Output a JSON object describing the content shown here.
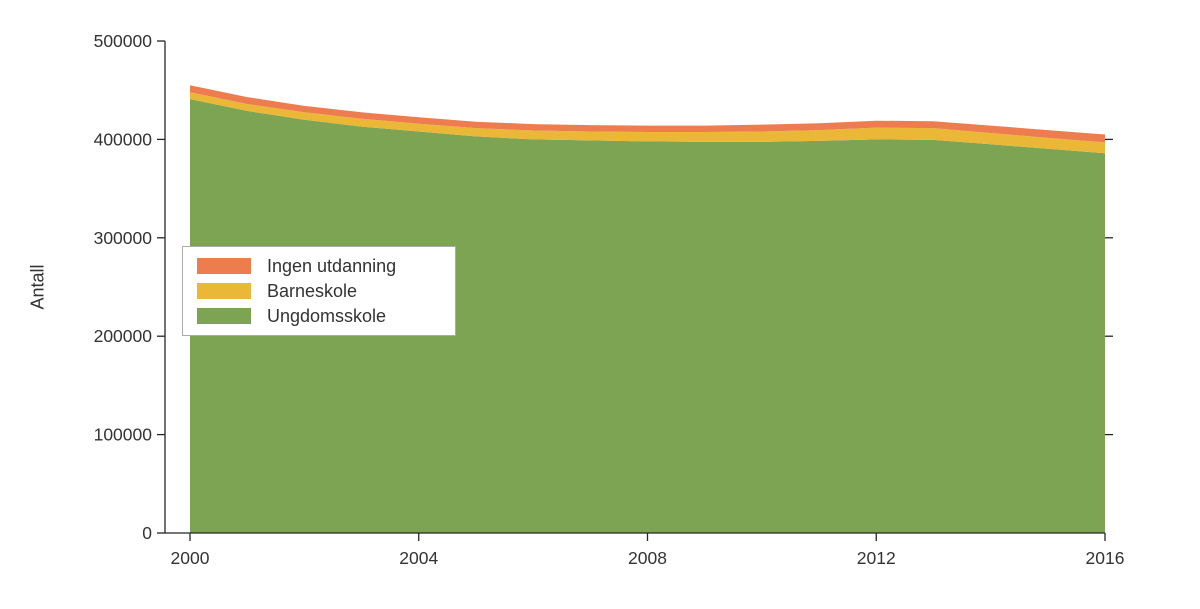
{
  "chart_data": {
    "type": "area",
    "stacked": true,
    "title": "",
    "xlabel": "",
    "ylabel": "Antall",
    "x": [
      2000,
      2001,
      2002,
      2003,
      2004,
      2005,
      2006,
      2007,
      2008,
      2009,
      2010,
      2011,
      2012,
      2013,
      2014,
      2015,
      2016
    ],
    "x_ticks": [
      2000,
      2004,
      2008,
      2012,
      2016
    ],
    "y_ticks": [
      0,
      100000,
      200000,
      300000,
      400000,
      500000
    ],
    "ylim": [
      0,
      500000
    ],
    "grid": false,
    "series": [
      {
        "name": "Ungdomsskole",
        "color": "#7da453",
        "values": [
          441000,
          429000,
          420000,
          413000,
          408000,
          403000,
          400000,
          399000,
          398000,
          397500,
          397500,
          398500,
          400000,
          399500,
          395000,
          390500,
          386000
        ]
      },
      {
        "name": "Barneskole",
        "color": "#eab836",
        "values": [
          7000,
          7000,
          7500,
          8000,
          8000,
          8500,
          9000,
          9000,
          9500,
          10000,
          10500,
          11000,
          12000,
          12000,
          11500,
          11000,
          11000
        ]
      },
      {
        "name": "Ingen utdanning",
        "color": "#ed7d4e",
        "values": [
          7000,
          7000,
          6500,
          6500,
          6500,
          6500,
          6500,
          6500,
          6500,
          6500,
          7000,
          7000,
          7000,
          7000,
          7500,
          8000,
          8000
        ]
      }
    ],
    "legend": {
      "position": "left-middle",
      "entries": [
        {
          "label": "Ingen utdanning",
          "color": "#ed7d4e"
        },
        {
          "label": "Barneskole",
          "color": "#eab836"
        },
        {
          "label": "Ungdomsskole",
          "color": "#7da453"
        }
      ]
    },
    "colors": {
      "axis": "#262626",
      "text": "#333333",
      "background": "#ffffff"
    }
  }
}
